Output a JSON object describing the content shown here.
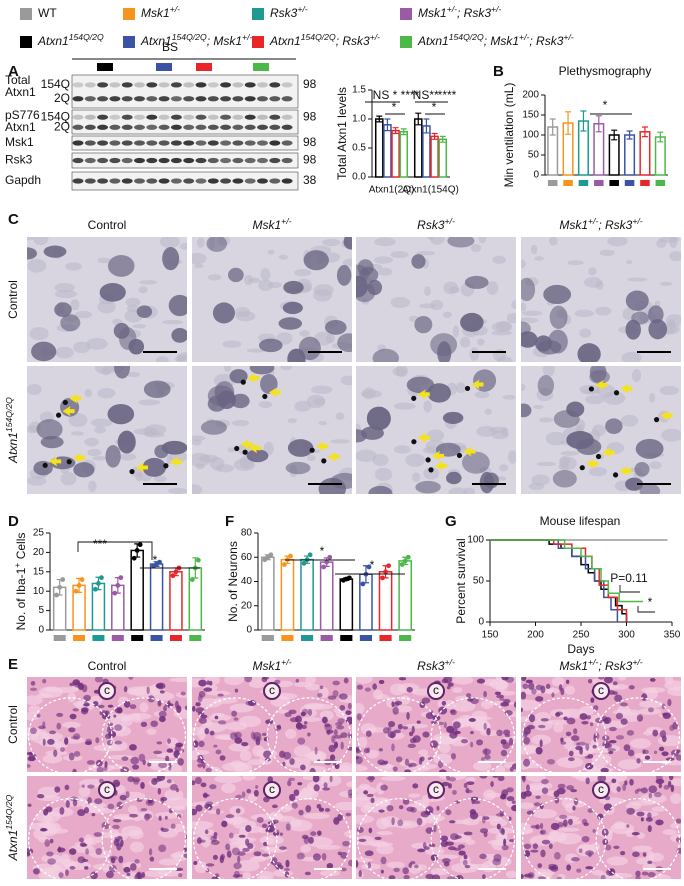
{
  "legend": {
    "items": [
      {
        "parts": [
          {
            "t": "WT"
          }
        ],
        "color": "#9a9a9a"
      },
      {
        "parts": [
          {
            "t": "Msk1",
            "s": "+/-"
          }
        ],
        "color": "#f7941d"
      },
      {
        "parts": [
          {
            "t": "Rsk3",
            "s": "+/-"
          }
        ],
        "color": "#1f9a92"
      },
      {
        "parts": [
          {
            "t": "Msk1",
            "s": "+/-"
          },
          {
            "t": "; Rsk3",
            "s": "+/-"
          }
        ],
        "color": "#9b5aa6"
      },
      {
        "parts": [
          {
            "t": "Atxn1",
            "s": "154Q/2Q"
          }
        ],
        "color": "#000000"
      },
      {
        "parts": [
          {
            "t": "Atxn1",
            "s": "154Q/2Q"
          },
          {
            "t": "; Msk1",
            "s": "+/-"
          }
        ],
        "color": "#3a53a4"
      },
      {
        "parts": [
          {
            "t": "Atxn1",
            "s": "154Q/2Q"
          },
          {
            "t": "; Rsk3",
            "s": "+/-"
          }
        ],
        "color": "#e8262a"
      },
      {
        "parts": [
          {
            "t": "Atxn1",
            "s": "154Q/2Q"
          },
          {
            "t": "; Msk1",
            "s": "+/-"
          },
          {
            "t": "; Rsk3",
            "s": "+/-"
          }
        ],
        "color": "#4cb848"
      }
    ]
  },
  "panel_labels": [
    "A",
    "B",
    "C",
    "D",
    "F",
    "G",
    "E"
  ],
  "blot": {
    "tissue": "BS",
    "lane_colors": [
      "#000000",
      "#3a53a4",
      "#e8262a",
      "#4cb848"
    ],
    "rows": [
      {
        "label": [
          "Total",
          "Atxn1"
        ],
        "bands": [
          "154Q",
          "2Q"
        ],
        "mw": "98"
      },
      {
        "label": [
          "pS776",
          "Atxn1"
        ],
        "bands": [
          "154Q",
          "2Q"
        ],
        "mw": "98"
      },
      {
        "label": [
          "Msk1"
        ],
        "mw": "98"
      },
      {
        "label": [
          "Rsk3"
        ],
        "mw": "98"
      },
      {
        "label": [
          "Gapdh"
        ],
        "mw": "38"
      }
    ]
  },
  "panel_c": {
    "columns": [
      [
        {
          "t": "Control"
        }
      ],
      [
        {
          "t": "Msk1",
          "s": "+/-"
        }
      ],
      [
        {
          "t": "Rsk3",
          "s": "+/-"
        }
      ],
      [
        {
          "t": "Msk1",
          "s": "+/-"
        },
        {
          "t": "; Rsk3",
          "s": "+/-"
        }
      ]
    ],
    "rows": [
      [
        {
          "t": "Control"
        }
      ],
      [
        {
          "t": "Atxn1",
          "s": "154Q/2Q"
        }
      ]
    ]
  },
  "panel_e": {
    "columns": [
      [
        {
          "t": "Control"
        }
      ],
      [
        {
          "t": "Msk1",
          "s": "+/-"
        }
      ],
      [
        {
          "t": "Rsk3",
          "s": "+/-"
        }
      ],
      [
        {
          "t": "Msk1",
          "s": "+/-"
        },
        {
          "t": "; Rsk3",
          "s": "+/-"
        }
      ]
    ],
    "rows": [
      [
        {
          "t": "Control"
        }
      ],
      [
        {
          "t": "Atxn1",
          "s": "154Q/2Q"
        }
      ]
    ],
    "canal_label": "c"
  },
  "chart_data": [
    {
      "type": "bar",
      "ylabel": "Total Atxn1 levels",
      "categories": [
        "Atxn1(2Q)",
        "Atxn1(154Q)"
      ],
      "series": [
        {
          "color": "#000000",
          "values": [
            1.0,
            1.0
          ],
          "errors": [
            0.05,
            0.1
          ]
        },
        {
          "color": "#3a53a4",
          "values": [
            0.9,
            0.88
          ],
          "errors": [
            0.1,
            0.12
          ]
        },
        {
          "color": "#e8262a",
          "values": [
            0.8,
            0.7
          ],
          "errors": [
            0.05,
            0.05
          ]
        },
        {
          "color": "#4cb848",
          "values": [
            0.78,
            0.65
          ],
          "errors": [
            0.05,
            0.05
          ]
        }
      ],
      "ylim": [
        0,
        1.5
      ],
      "yticks": [
        {
          "value": 0,
          "label": "0.0"
        },
        0.5,
        {
          "value": 1,
          "label": "1.0"
        },
        1.5
      ],
      "annotations": [
        "NS",
        "*",
        "****",
        "*",
        "NS",
        "**",
        "****",
        "*"
      ]
    },
    {
      "type": "bar",
      "title": "Plethysmography",
      "ylabel": "Min ventilation (mL)",
      "colors": [
        "#9a9a9a",
        "#f7941d",
        "#1f9a92",
        "#9b5aa6",
        "#000000",
        "#3a53a4",
        "#e8262a",
        "#4cb848"
      ],
      "values": [
        120,
        130,
        135,
        128,
        100,
        100,
        108,
        95
      ],
      "errors": [
        20,
        28,
        25,
        20,
        12,
        10,
        12,
        12
      ],
      "ylim": [
        0,
        200
      ],
      "yticks": [
        0,
        50,
        100,
        150,
        200
      ],
      "annotations": [
        "*"
      ]
    },
    {
      "type": "bar",
      "ylabel": [
        {
          "t": "No. of Iba-1",
          "s": "+"
        },
        {
          "t": " Cells"
        }
      ],
      "colors": [
        "#9a9a9a",
        "#f7941d",
        "#1f9a92",
        "#9b5aa6",
        "#000000",
        "#3a53a4",
        "#e8262a",
        "#4cb848"
      ],
      "values": [
        11,
        11.5,
        12,
        11.5,
        20.5,
        17,
        15,
        16
      ],
      "errors": [
        2,
        1.8,
        1.6,
        2,
        1.7,
        0.6,
        1,
        2.6
      ],
      "points": [
        [
          9,
          11,
          13
        ],
        [
          10,
          11.5,
          13
        ],
        [
          10.5,
          12,
          13.5
        ],
        [
          9.5,
          11.5,
          13.5
        ],
        [
          18.5,
          20.5,
          22
        ],
        [
          16.5,
          17,
          17.5
        ],
        [
          14,
          15,
          16
        ],
        [
          13,
          16,
          18
        ]
      ],
      "ylim": [
        0,
        25
      ],
      "yticks": [
        0,
        5,
        10,
        15,
        20,
        25
      ],
      "annotations": [
        "***",
        "*"
      ]
    },
    {
      "type": "bar",
      "ylabel": "No. of Neurons",
      "colors": [
        "#9a9a9a",
        "#f7941d",
        "#1f9a92",
        "#9b5aa6",
        "#000000",
        "#3a53a4",
        "#e8262a",
        "#4cb848"
      ],
      "values": [
        60,
        58,
        58,
        56,
        42,
        46,
        48,
        57
      ],
      "errors": [
        2,
        3,
        3,
        3.5,
        1,
        7,
        5,
        3
      ],
      "points": [
        [
          58,
          60,
          62
        ],
        [
          54,
          58,
          61
        ],
        [
          55,
          58,
          62
        ],
        [
          52,
          56,
          60
        ],
        [
          41,
          42,
          43
        ],
        [
          38,
          46,
          52
        ],
        [
          43,
          48,
          53
        ],
        [
          54,
          57,
          60
        ]
      ],
      "ylim": [
        0,
        80
      ],
      "yticks": [
        0,
        20,
        40,
        60,
        80
      ],
      "annotations": [
        "*",
        "*"
      ]
    },
    {
      "type": "line",
      "title": "Mouse lifespan",
      "xlabel": "Days",
      "ylabel": "Percent survival",
      "xlim": [
        150,
        350
      ],
      "xticks": [
        150,
        200,
        250,
        300,
        350
      ],
      "ylim": [
        0,
        100
      ],
      "yticks": [
        0,
        50,
        100
      ],
      "series": [
        {
          "color": "#9a9a9a",
          "x": [
            150,
            345
          ],
          "y": [
            100,
            100
          ]
        },
        {
          "color": "#000000",
          "x": [
            150,
            215,
            215,
            228,
            228,
            240,
            240,
            250,
            250,
            258,
            258,
            265,
            265,
            272,
            272,
            280,
            280,
            288,
            288,
            295,
            295,
            300,
            300
          ],
          "y": [
            100,
            100,
            95,
            95,
            90,
            90,
            80,
            80,
            70,
            70,
            60,
            60,
            50,
            50,
            40,
            40,
            30,
            30,
            20,
            20,
            10,
            10,
            0
          ]
        },
        {
          "color": "#3a53a4",
          "x": [
            150,
            225,
            225,
            240,
            240,
            255,
            255,
            265,
            265,
            275,
            275,
            283,
            283,
            290,
            290
          ],
          "y": [
            100,
            100,
            90,
            90,
            80,
            80,
            65,
            65,
            50,
            50,
            30,
            30,
            15,
            15,
            0
          ]
        },
        {
          "color": "#e8262a",
          "x": [
            150,
            220,
            220,
            240,
            240,
            255,
            255,
            262,
            262,
            270,
            270,
            280,
            280,
            290,
            290,
            300,
            300
          ],
          "y": [
            100,
            100,
            95,
            95,
            90,
            90,
            80,
            80,
            65,
            65,
            45,
            45,
            30,
            30,
            15,
            15,
            0
          ]
        },
        {
          "color": "#4cb848",
          "x": [
            150,
            232,
            232,
            250,
            250,
            262,
            262,
            272,
            272,
            280,
            280,
            292,
            292,
            318
          ],
          "y": [
            100,
            100,
            90,
            90,
            80,
            80,
            65,
            65,
            50,
            50,
            35,
            35,
            25,
            25
          ]
        }
      ],
      "annotations": [
        "P=0.11",
        "*"
      ]
    }
  ]
}
